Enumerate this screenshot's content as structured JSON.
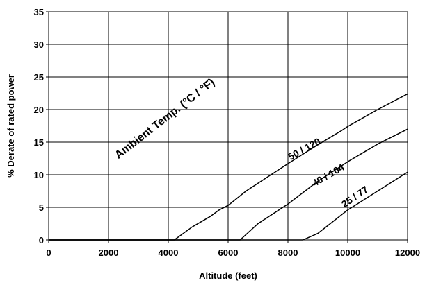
{
  "chart_data": {
    "type": "line",
    "xlabel": "Altitude (feet)",
    "ylabel": "% Derate of rated power",
    "xlim": [
      0,
      12000
    ],
    "ylim": [
      0,
      35
    ],
    "xticks": [
      0,
      2000,
      4000,
      6000,
      8000,
      10000,
      12000
    ],
    "yticks": [
      0,
      5,
      10,
      15,
      20,
      25,
      30,
      35
    ],
    "xtick_labels": [
      "0",
      "2000",
      "4000",
      "6000",
      "8000",
      "10000",
      "12000"
    ],
    "ytick_labels": [
      "0",
      "5",
      "10",
      "15",
      "20",
      "25",
      "30",
      "35"
    ],
    "grid": true,
    "legend": "none",
    "annotation": "Ambient Temp. (°C / °F)",
    "series": [
      {
        "label": "50 / 120",
        "x": [
          0,
          4200,
          4800,
          5400,
          5700,
          6000,
          6600,
          7500,
          8000,
          9000,
          9800,
          10000,
          11000,
          12000
        ],
        "y": [
          0,
          0,
          2,
          3.6,
          4.6,
          5.3,
          7.5,
          10.2,
          11.7,
          14.6,
          16.8,
          17.4,
          20,
          22.4
        ]
      },
      {
        "label": "40 / 104",
        "x": [
          0,
          6400,
          7000,
          8000,
          9000,
          10000,
          11000,
          12000
        ],
        "y": [
          0,
          0,
          2.5,
          5.5,
          9,
          12,
          14.7,
          17
        ]
      },
      {
        "label": "25 / 77",
        "x": [
          0,
          8500,
          9000,
          10000,
          11000,
          12000
        ],
        "y": [
          0,
          0,
          1,
          4.6,
          7.5,
          10.4
        ]
      }
    ]
  }
}
